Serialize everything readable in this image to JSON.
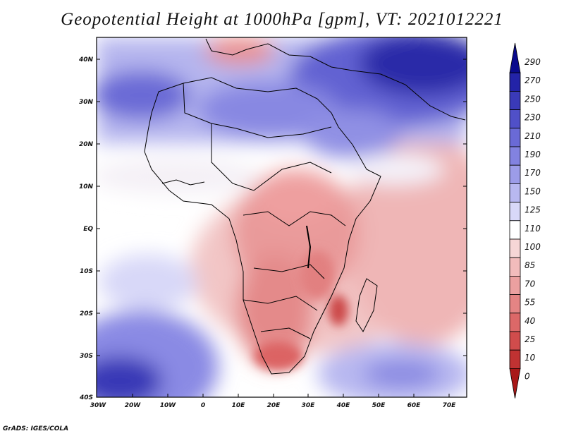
{
  "title": "Geopotential Height at 1000hPa [gpm], VT: 2021012221",
  "footer": "GrADS: IGES/COLA",
  "map": {
    "lat_labels": [
      "40N",
      "30N",
      "20N",
      "10N",
      "EQ",
      "10S",
      "20S",
      "30S",
      "40S"
    ],
    "lon_labels": [
      "30W",
      "20W",
      "10W",
      "0",
      "10E",
      "20E",
      "30E",
      "40E",
      "50E",
      "60E",
      "70E"
    ]
  },
  "colorbar": {
    "levels": [
      "290",
      "270",
      "250",
      "230",
      "210",
      "190",
      "170",
      "150",
      "125",
      "110",
      "100",
      "85",
      "70",
      "55",
      "40",
      "25",
      "10",
      "0"
    ],
    "colors": [
      "#0a0a8c",
      "#2323a8",
      "#3a3ab8",
      "#5050c8",
      "#6a6ad6",
      "#8282e0",
      "#9c9ce8",
      "#b8b8f0",
      "#d8d8f8",
      "#ffffff",
      "#f6d6d6",
      "#f2bcbc",
      "#eba0a0",
      "#e48484",
      "#dc6868",
      "#d04c4c",
      "#c03232",
      "#a81818"
    ]
  }
}
